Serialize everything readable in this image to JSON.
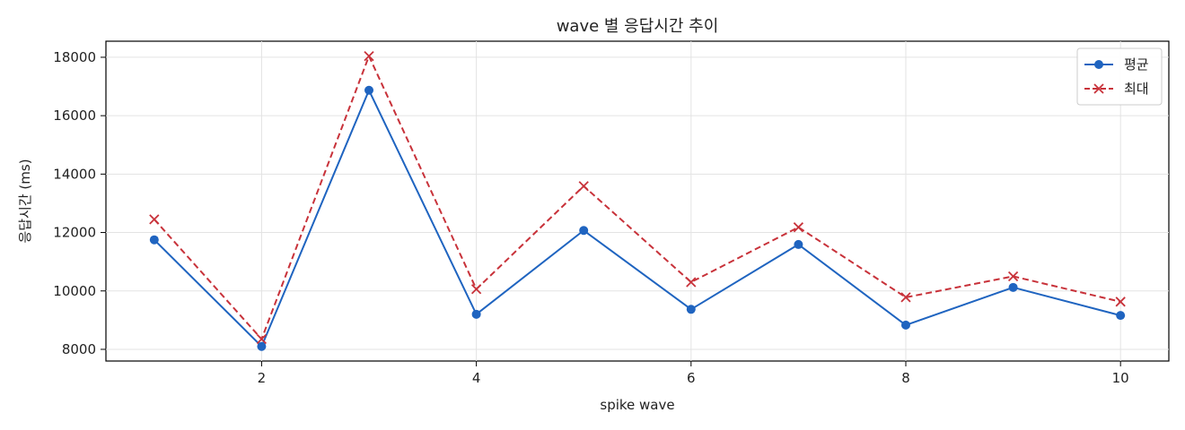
{
  "chart_data": {
    "type": "line",
    "title": "wave 별 응답시간 추이",
    "xlabel": "spike wave",
    "ylabel": "응답시간 (ms)",
    "x": [
      1,
      2,
      3,
      4,
      5,
      6,
      7,
      8,
      9,
      10
    ],
    "xlim": [
      0.55,
      10.45
    ],
    "ylim": [
      7600,
      18550
    ],
    "xticks": [
      2,
      4,
      6,
      8,
      10
    ],
    "yticks": [
      8000,
      10000,
      12000,
      14000,
      16000,
      18000
    ],
    "grid": true,
    "legend_position": "top-right",
    "series": [
      {
        "name": "평균",
        "values": [
          11750,
          8100,
          16870,
          9200,
          12070,
          9370,
          11590,
          8830,
          10120,
          9160
        ],
        "color": "#1f64c0",
        "marker": "circle",
        "line_style": "solid"
      },
      {
        "name": "최대",
        "values": [
          12450,
          8350,
          18040,
          10060,
          13590,
          10300,
          12180,
          9780,
          10500,
          9630
        ],
        "color": "#c8323a",
        "marker": "x",
        "line_style": "dashed"
      }
    ]
  }
}
